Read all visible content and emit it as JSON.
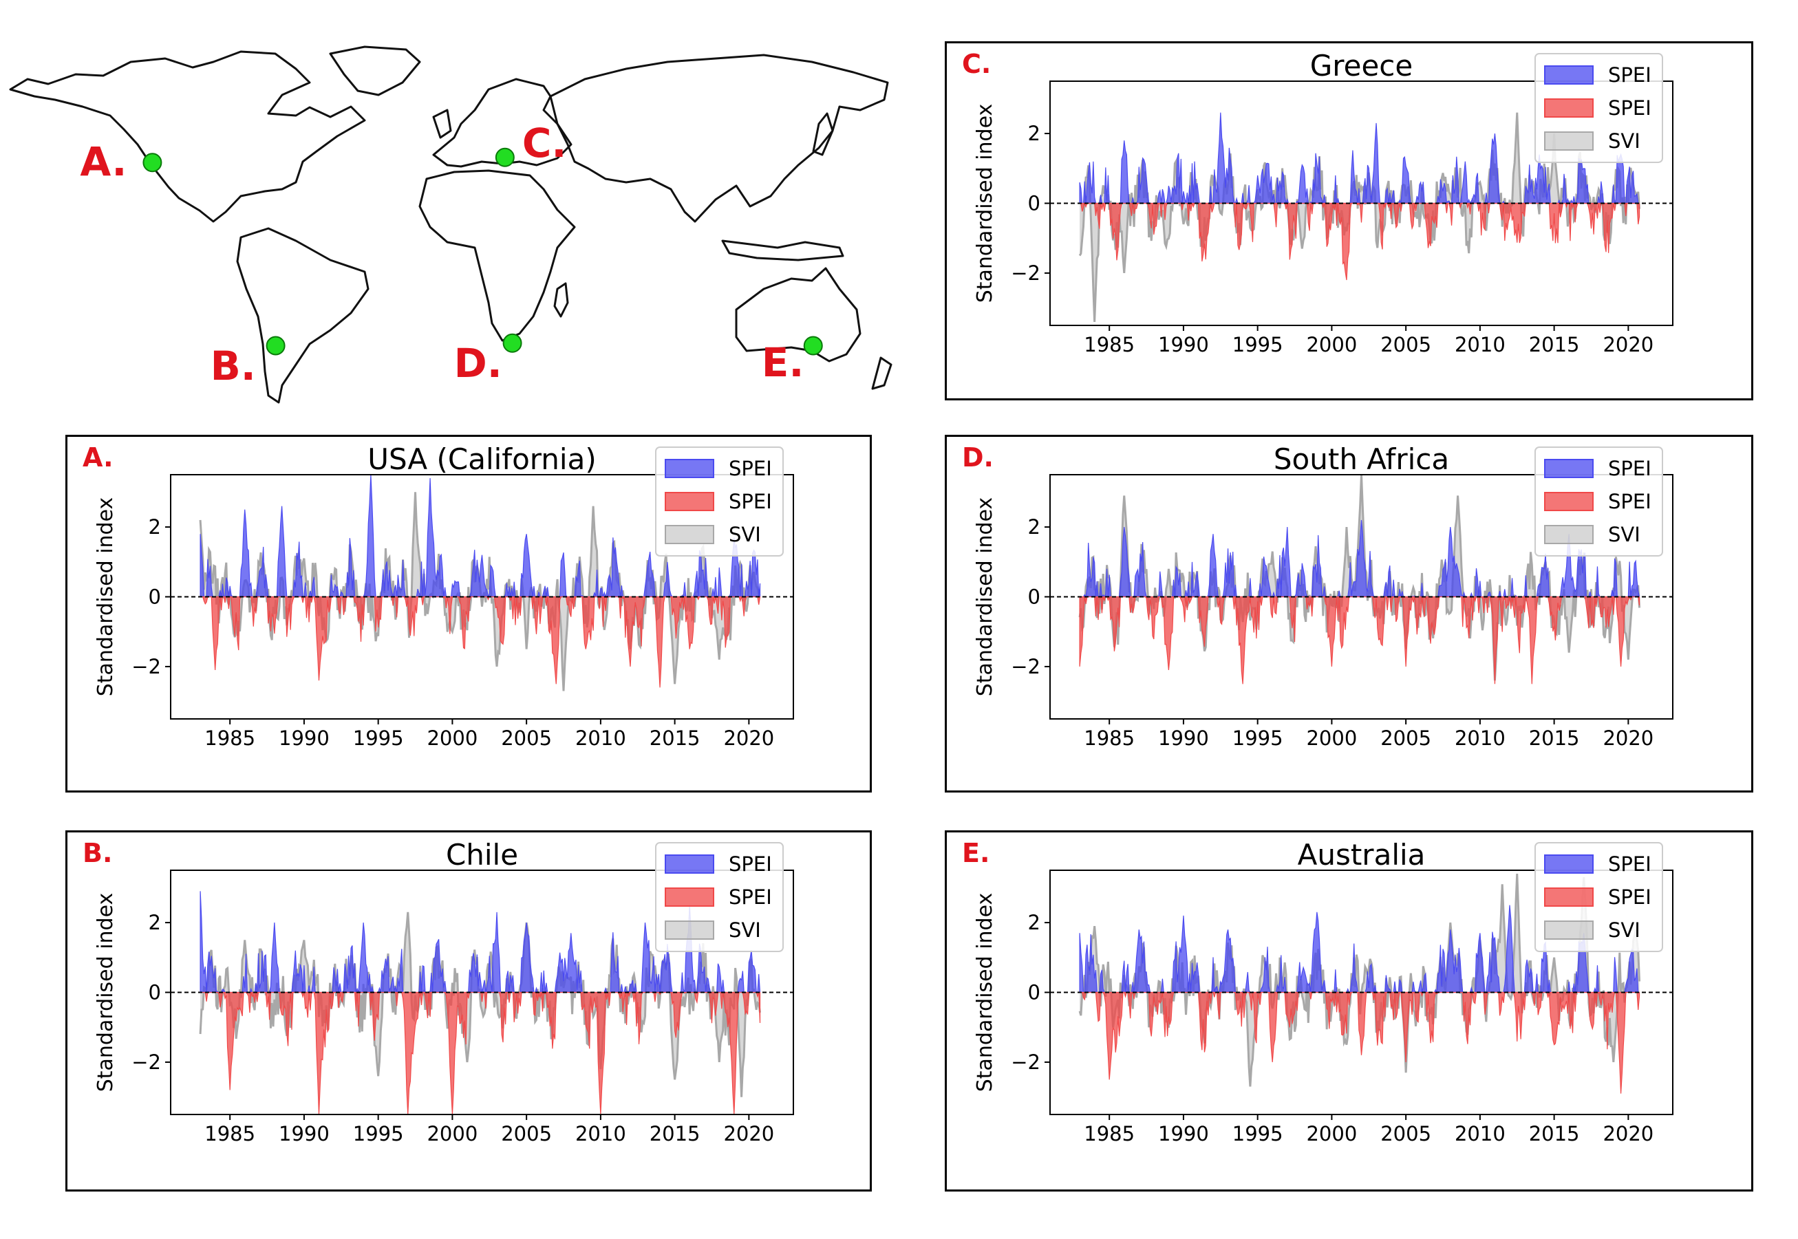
{
  "map": {
    "markers": [
      {
        "label": "A.",
        "lon": -121,
        "lat": 37
      },
      {
        "label": "B.",
        "lon": -71,
        "lat": -34
      },
      {
        "label": "C.",
        "lon": 22,
        "lat": 39
      },
      {
        "label": "D.",
        "lon": 25,
        "lat": -33
      },
      {
        "label": "E.",
        "lon": 147,
        "lat": -34
      }
    ],
    "colors": {
      "marker": "#22dd22",
      "label": "#e0141d",
      "coast": "#111111"
    }
  },
  "legend_labels": [
    "SPEI",
    "SPEI",
    "SVI"
  ],
  "ylabel": "Standardised index",
  "colors": {
    "spei_pos": "#4a4af0",
    "spei_neg": "#f04848",
    "svi": "#a8a8a8"
  },
  "chart_data": [
    {
      "type": "area",
      "letter": "C.",
      "title": "Greece",
      "xlim": [
        1981,
        2023
      ],
      "ylim": [
        -3.5,
        3.5
      ],
      "xticks": [
        1985,
        1990,
        1995,
        2000,
        2005,
        2010,
        2015,
        2020
      ],
      "yticks": [
        -2,
        0,
        2
      ],
      "ytick_labels": [
        "−2",
        "0",
        "2"
      ],
      "legend": [
        "SPEI",
        "SPEI",
        "SVI"
      ],
      "series": [
        {
          "name": "SPEI",
          "x": [
            1983,
            1986,
            1989,
            1992.5,
            1995,
            1998,
            2001,
            2003,
            2006,
            2009,
            2011,
            2014,
            2017,
            2019.5
          ],
          "values": [
            0.6,
            1.8,
            0.5,
            2.6,
            0.8,
            1.1,
            -2.2,
            2.3,
            0.6,
            1.2,
            2.0,
            1.4,
            1.0,
            1.4
          ]
        },
        {
          "name": "SVI",
          "x": [
            1983,
            1984,
            1986,
            1990,
            1995,
            1998,
            2001,
            2005,
            2010,
            2012.5,
            2015,
            2018,
            2020.5
          ],
          "values": [
            -1.5,
            -3.4,
            -2.0,
            -0.6,
            0.4,
            -1.3,
            -0.8,
            0.2,
            0.6,
            2.6,
            2.0,
            0.4,
            0.3
          ]
        }
      ]
    },
    {
      "type": "area",
      "letter": "A.",
      "title": "USA (California)",
      "xlim": [
        1981,
        2023
      ],
      "ylim": [
        -3.5,
        3.5
      ],
      "xticks": [
        1985,
        1990,
        1995,
        2000,
        2005,
        2010,
        2015,
        2020
      ],
      "yticks": [
        -2,
        0,
        2
      ],
      "ytick_labels": [
        "−2",
        "0",
        "2"
      ],
      "legend": [
        "SPEI",
        "SPEI",
        "SVI"
      ],
      "series": [
        {
          "name": "SPEI",
          "x": [
            1983,
            1984,
            1986,
            1988.5,
            1991,
            1994.5,
            1998.5,
            2002,
            2005,
            2007,
            2009,
            2012,
            2014,
            2016,
            2019
          ],
          "values": [
            1.8,
            -2.1,
            2.5,
            2.6,
            -2.4,
            3.5,
            3.4,
            1.2,
            1.8,
            -2.5,
            -1.5,
            -2.0,
            -2.6,
            -1.5,
            1.7
          ]
        },
        {
          "name": "SVI",
          "x": [
            1983,
            1990,
            1997.5,
            2000,
            2003,
            2005,
            2007.5,
            2009.5,
            2012,
            2015,
            2018,
            2020.5
          ],
          "values": [
            2.2,
            1.1,
            3.0,
            -1.0,
            -2.0,
            -1.5,
            -2.7,
            2.6,
            -1.5,
            -2.5,
            -1.8,
            0.3
          ]
        }
      ]
    },
    {
      "type": "area",
      "letter": "D.",
      "title": "South Africa",
      "xlim": [
        1981,
        2023
      ],
      "ylim": [
        -3.5,
        3.5
      ],
      "xticks": [
        1985,
        1990,
        1995,
        2000,
        2005,
        2010,
        2015,
        2020
      ],
      "yticks": [
        -2,
        0,
        2
      ],
      "ytick_labels": [
        "−2",
        "0",
        "2"
      ],
      "legend": [
        "SPEI",
        "SPEI",
        "SVI"
      ],
      "series": [
        {
          "name": "SPEI",
          "x": [
            1983,
            1986,
            1989,
            1992,
            1994,
            1997,
            2000,
            2002,
            2005,
            2008,
            2011,
            2013.5,
            2016,
            2019.5
          ],
          "values": [
            -2.0,
            2.0,
            -2.1,
            1.8,
            -2.5,
            2.0,
            -2.0,
            2.2,
            -2.0,
            2.0,
            -2.5,
            -2.5,
            1.8,
            -2.0
          ]
        },
        {
          "name": "SVI",
          "x": [
            1986,
            1989,
            1996,
            2001,
            2002,
            2005,
            2008.5,
            2011,
            2016,
            2020,
            2021
          ],
          "values": [
            2.9,
            0.8,
            1.3,
            2.0,
            3.5,
            -1.5,
            2.9,
            -2.4,
            -1.6,
            -1.8,
            -1.9
          ]
        }
      ]
    },
    {
      "type": "area",
      "letter": "B.",
      "title": "Chile",
      "xlim": [
        1981,
        2023
      ],
      "ylim": [
        -3.5,
        3.5
      ],
      "xticks": [
        1985,
        1990,
        1995,
        2000,
        2005,
        2010,
        2015,
        2020
      ],
      "yticks": [
        -2,
        0,
        2
      ],
      "ytick_labels": [
        "−2",
        "0",
        "2"
      ],
      "legend": [
        "SPEI",
        "SPEI",
        "SVI"
      ],
      "series": [
        {
          "name": "SPEI",
          "x": [
            1983,
            1985,
            1988,
            1991,
            1994,
            1997,
            2000,
            2003,
            2005,
            2008,
            2010,
            2013,
            2016,
            2019
          ],
          "values": [
            2.9,
            -2.8,
            2.0,
            -3.5,
            2.0,
            -3.5,
            -3.5,
            2.3,
            2.0,
            1.7,
            -3.5,
            2.0,
            2.5,
            -3.5
          ]
        },
        {
          "name": "SVI",
          "x": [
            1986,
            1990,
            1995,
            1997,
            2001,
            2005,
            2010,
            2015,
            2018,
            2019.5,
            2020.5
          ],
          "values": [
            1.5,
            1.5,
            -2.4,
            2.3,
            -2.0,
            2.0,
            -2.2,
            -2.5,
            -2.0,
            -3.0,
            -0.5
          ]
        }
      ]
    },
    {
      "type": "area",
      "letter": "E.",
      "title": "Australia",
      "xlim": [
        1981,
        2023
      ],
      "ylim": [
        -3.5,
        3.5
      ],
      "xticks": [
        1985,
        1990,
        1995,
        2000,
        2005,
        2010,
        2015,
        2020
      ],
      "yticks": [
        -2,
        0,
        2
      ],
      "ytick_labels": [
        "−2",
        "0",
        "2"
      ],
      "legend": [
        "SPEI",
        "SPEI",
        "SVI"
      ],
      "series": [
        {
          "name": "SPEI",
          "x": [
            1983,
            1985,
            1987,
            1990,
            1993,
            1996,
            1999,
            2002,
            2005,
            2008,
            2010,
            2012,
            2015,
            2017,
            2019.5
          ],
          "values": [
            1.7,
            -2.5,
            1.8,
            2.2,
            1.8,
            -2.0,
            2.3,
            -1.8,
            -2.0,
            1.8,
            1.7,
            2.5,
            -1.5,
            1.7,
            -2.9
          ]
        },
        {
          "name": "SVI",
          "x": [
            1984,
            1994.5,
            2001,
            2005,
            2008,
            2010,
            2011.5,
            2012.5,
            2015,
            2017,
            2019,
            2020.5
          ],
          "values": [
            1.9,
            -2.7,
            -1.5,
            -2.3,
            2.0,
            1.5,
            3.1,
            3.4,
            1.0,
            3.3,
            -2.0,
            1.8
          ]
        }
      ]
    }
  ]
}
